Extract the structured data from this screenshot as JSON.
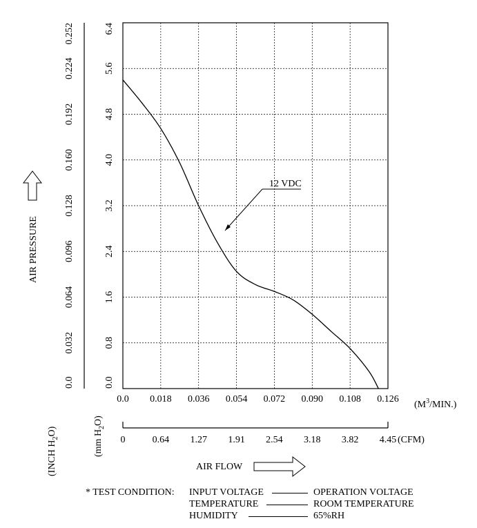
{
  "chart_data": {
    "type": "line",
    "title": "",
    "xlabel": "AIR FLOW",
    "ylabel": "AIR PRESSURE",
    "x_unit": "(M³/MIN.)",
    "x_unit_base": "(M",
    "x_unit_sup": "3",
    "x_unit_tail": "/MIN.)",
    "x2_unit": "(CFM)",
    "y_unit_mm_base": "(mm H",
    "y_unit_mm_sub": "2",
    "y_unit_mm_tail": "O)",
    "y_unit_inch_base": "(INCH H",
    "y_unit_inch_sub": "2",
    "y_unit_inch_tail": "O)",
    "xlim": [
      0,
      0.126
    ],
    "ylim": [
      0,
      6.4
    ],
    "x_ticks": [
      "0.0",
      "0.018",
      "0.036",
      "0.054",
      "0.072",
      "0.090",
      "0.108",
      "0.126"
    ],
    "x2_ticks": [
      "0",
      "0.64",
      "1.27",
      "1.91",
      "2.54",
      "3.18",
      "3.82",
      "4.45"
    ],
    "y_ticks_mm": [
      "0.0",
      "0.8",
      "1.6",
      "2.4",
      "3.2",
      "4.0",
      "4.8",
      "5.6",
      "6.4"
    ],
    "y_ticks_inch": [
      "0.0",
      "0.032",
      "0.064",
      "0.096",
      "0.128",
      "0.160",
      "0.192",
      "0.224",
      "0.252"
    ],
    "grid": true,
    "series": [
      {
        "name": "12 VDC",
        "x": [
          0,
          0.009,
          0.018,
          0.027,
          0.036,
          0.045,
          0.054,
          0.063,
          0.072,
          0.081,
          0.09,
          0.099,
          0.108,
          0.117,
          0.1215
        ],
        "y": [
          5.4,
          5.0,
          4.55,
          3.95,
          3.2,
          2.55,
          2.05,
          1.82,
          1.7,
          1.55,
          1.3,
          1.0,
          0.7,
          0.3,
          0.0
        ]
      }
    ],
    "annotation": "12 VDC"
  },
  "test_condition": {
    "prefix": "* TEST CONDITION:",
    "rows": [
      {
        "key": "INPUT VOLTAGE",
        "value": "OPERATION VOLTAGE"
      },
      {
        "key": "TEMPERATURE",
        "value": "ROOM TEMPERATURE"
      },
      {
        "key": "HUMIDITY",
        "value": "65%RH"
      }
    ]
  },
  "colors": {
    "line": "#000000",
    "grid": "#000000",
    "background": "#ffffff"
  }
}
